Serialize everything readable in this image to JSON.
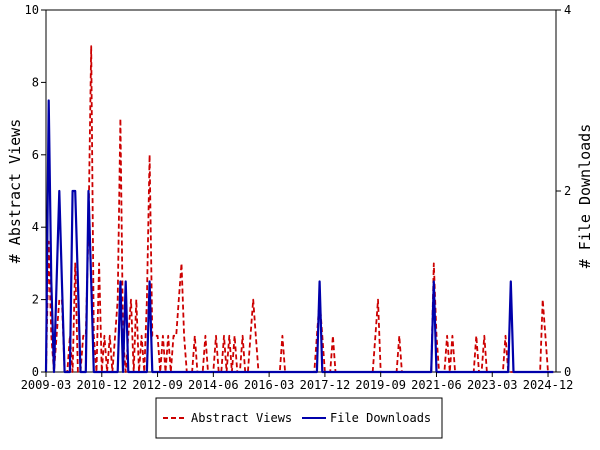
{
  "chart_data": {
    "type": "line",
    "ylabel_left": "# Abstract Views",
    "ylabel_right": "# File Downloads",
    "ylim_left": [
      0,
      10
    ],
    "ylim_right": [
      0,
      4
    ],
    "yticks_left": [
      "0",
      "2",
      "4",
      "6",
      "8",
      "10"
    ],
    "yticks_right": [
      "0",
      "2",
      "4"
    ],
    "x_tick_labels": [
      "2009-03",
      "2010-12",
      "2012-09",
      "2014-06",
      "2016-03",
      "2017-12",
      "2019-09",
      "2021-06",
      "2023-03",
      "2024-12"
    ],
    "x_range": [
      "2009-03",
      "2025-03"
    ],
    "grid": false,
    "legend_position": "bottom",
    "series": [
      {
        "name": "Abstract Views",
        "axis": "left",
        "color": "#cc0000",
        "style": "dashed",
        "points": [
          [
            "2009-03",
            0
          ],
          [
            "2009-04",
            3.6
          ],
          [
            "2009-05",
            1
          ],
          [
            "2009-06",
            0
          ],
          [
            "2009-07",
            1
          ],
          [
            "2009-08",
            2
          ],
          [
            "2009-09",
            2
          ],
          [
            "2009-10",
            0
          ],
          [
            "2009-11",
            0
          ],
          [
            "2009-12",
            1
          ],
          [
            "2010-01",
            0
          ],
          [
            "2010-02",
            3
          ],
          [
            "2010-03",
            0
          ],
          [
            "2010-04",
            0
          ],
          [
            "2010-05",
            1
          ],
          [
            "2010-06",
            1
          ],
          [
            "2010-07",
            4
          ],
          [
            "2010-08",
            9
          ],
          [
            "2010-09",
            1
          ],
          [
            "2010-10",
            0
          ],
          [
            "2010-11",
            3
          ],
          [
            "2010-12",
            0
          ],
          [
            "2011-01",
            1
          ],
          [
            "2011-02",
            0
          ],
          [
            "2011-03",
            1
          ],
          [
            "2011-04",
            0
          ],
          [
            "2011-05",
            1
          ],
          [
            "2011-06",
            2
          ],
          [
            "2011-07",
            7
          ],
          [
            "2011-08",
            1
          ],
          [
            "2011-09",
            0
          ],
          [
            "2011-10",
            1
          ],
          [
            "2011-11",
            2
          ],
          [
            "2011-12",
            0
          ],
          [
            "2012-01",
            2
          ],
          [
            "2012-02",
            0
          ],
          [
            "2012-03",
            1
          ],
          [
            "2012-04",
            0
          ],
          [
            "2012-05",
            2
          ],
          [
            "2012-06",
            6
          ],
          [
            "2012-07",
            1
          ],
          [
            "2012-08",
            1
          ],
          [
            "2012-09",
            1
          ],
          [
            "2012-10",
            0
          ],
          [
            "2012-11",
            1
          ],
          [
            "2012-12",
            0
          ],
          [
            "2013-01",
            1
          ],
          [
            "2013-02",
            0
          ],
          [
            "2013-03",
            1
          ],
          [
            "2013-04",
            1
          ],
          [
            "2013-05",
            2
          ],
          [
            "2013-06",
            3
          ],
          [
            "2013-07",
            1
          ],
          [
            "2013-08",
            0
          ],
          [
            "2013-09",
            0
          ],
          [
            "2013-10",
            0
          ],
          [
            "2013-11",
            1
          ],
          [
            "2013-12",
            0
          ],
          [
            "2014-01",
            0
          ],
          [
            "2014-02",
            0
          ],
          [
            "2014-03",
            1
          ],
          [
            "2014-04",
            0
          ],
          [
            "2014-05",
            0
          ],
          [
            "2014-06",
            0
          ],
          [
            "2014-07",
            1
          ],
          [
            "2014-08",
            0
          ],
          [
            "2014-09",
            0
          ],
          [
            "2014-10",
            1
          ],
          [
            "2014-11",
            0
          ],
          [
            "2014-12",
            1
          ],
          [
            "2015-01",
            0
          ],
          [
            "2015-02",
            1
          ],
          [
            "2015-03",
            0
          ],
          [
            "2015-04",
            0
          ],
          [
            "2015-05",
            1
          ],
          [
            "2015-06",
            0
          ],
          [
            "2015-07",
            0
          ],
          [
            "2015-08",
            1
          ],
          [
            "2015-09",
            2
          ],
          [
            "2015-10",
            1
          ],
          [
            "2015-11",
            0
          ],
          [
            "2015-12",
            0
          ],
          [
            "2016-01",
            0
          ],
          [
            "2016-02",
            0
          ],
          [
            "2016-03",
            0
          ],
          [
            "2016-04",
            0
          ],
          [
            "2016-05",
            0
          ],
          [
            "2016-06",
            0
          ],
          [
            "2016-07",
            0
          ],
          [
            "2016-08",
            1
          ],
          [
            "2016-09",
            0
          ],
          [
            "2016-10",
            0
          ],
          [
            "2016-11",
            0
          ],
          [
            "2016-12",
            0
          ],
          [
            "2017-01",
            0
          ],
          [
            "2017-02",
            0
          ],
          [
            "2017-03",
            0
          ],
          [
            "2017-04",
            0
          ],
          [
            "2017-05",
            0
          ],
          [
            "2017-06",
            0
          ],
          [
            "2017-07",
            0
          ],
          [
            "2017-08",
            0
          ],
          [
            "2017-09",
            1
          ],
          [
            "2017-10",
            2
          ],
          [
            "2017-11",
            1
          ],
          [
            "2017-12",
            0
          ],
          [
            "2018-01",
            0
          ],
          [
            "2018-02",
            0
          ],
          [
            "2018-03",
            1
          ],
          [
            "2018-04",
            0
          ],
          [
            "2018-05",
            0
          ],
          [
            "2018-06",
            0
          ],
          [
            "2018-07",
            0
          ],
          [
            "2018-08",
            0
          ],
          [
            "2018-09",
            0
          ],
          [
            "2018-10",
            0
          ],
          [
            "2018-11",
            0
          ],
          [
            "2018-12",
            0
          ],
          [
            "2019-01",
            0
          ],
          [
            "2019-02",
            0
          ],
          [
            "2019-03",
            0
          ],
          [
            "2019-04",
            0
          ],
          [
            "2019-05",
            0
          ],
          [
            "2019-06",
            0
          ],
          [
            "2019-07",
            1
          ],
          [
            "2019-08",
            2
          ],
          [
            "2019-09",
            0
          ],
          [
            "2019-10",
            0
          ],
          [
            "2019-11",
            0
          ],
          [
            "2019-12",
            0
          ],
          [
            "2020-01",
            0
          ],
          [
            "2020-02",
            0
          ],
          [
            "2020-03",
            0
          ],
          [
            "2020-04",
            1
          ],
          [
            "2020-05",
            0
          ],
          [
            "2020-06",
            0
          ],
          [
            "2020-07",
            0
          ],
          [
            "2020-08",
            0
          ],
          [
            "2020-09",
            0
          ],
          [
            "2020-10",
            0
          ],
          [
            "2020-11",
            0
          ],
          [
            "2020-12",
            0
          ],
          [
            "2021-01",
            0
          ],
          [
            "2021-02",
            0
          ],
          [
            "2021-03",
            0
          ],
          [
            "2021-04",
            0
          ],
          [
            "2021-05",
            3
          ],
          [
            "2021-06",
            1
          ],
          [
            "2021-07",
            0
          ],
          [
            "2021-08",
            0
          ],
          [
            "2021-09",
            0
          ],
          [
            "2021-10",
            1
          ],
          [
            "2021-11",
            0
          ],
          [
            "2021-12",
            1
          ],
          [
            "2022-01",
            0
          ],
          [
            "2022-02",
            0
          ],
          [
            "2022-03",
            0
          ],
          [
            "2022-04",
            0
          ],
          [
            "2022-05",
            0
          ],
          [
            "2022-06",
            0
          ],
          [
            "2022-07",
            0
          ],
          [
            "2022-08",
            0
          ],
          [
            "2022-09",
            1
          ],
          [
            "2022-10",
            0
          ],
          [
            "2022-11",
            0
          ],
          [
            "2022-12",
            1
          ],
          [
            "2023-01",
            0
          ],
          [
            "2023-02",
            0
          ],
          [
            "2023-03",
            0
          ],
          [
            "2023-04",
            0
          ],
          [
            "2023-05",
            0
          ],
          [
            "2023-06",
            0
          ],
          [
            "2023-07",
            0
          ],
          [
            "2023-08",
            1
          ],
          [
            "2023-09",
            0
          ],
          [
            "2023-10",
            0
          ],
          [
            "2023-11",
            0
          ],
          [
            "2023-12",
            0
          ],
          [
            "2024-01",
            0
          ],
          [
            "2024-02",
            0
          ],
          [
            "2024-03",
            0
          ],
          [
            "2024-04",
            0
          ],
          [
            "2024-05",
            0
          ],
          [
            "2024-06",
            0
          ],
          [
            "2024-07",
            0
          ],
          [
            "2024-08",
            0
          ],
          [
            "2024-09",
            0
          ],
          [
            "2024-10",
            2
          ],
          [
            "2024-11",
            1
          ],
          [
            "2024-12",
            0
          ],
          [
            "2025-01",
            0
          ],
          [
            "2025-02",
            0
          ]
        ]
      },
      {
        "name": "File Downloads",
        "axis": "right",
        "color": "#0000aa",
        "style": "solid",
        "points": [
          [
            "2009-03",
            0
          ],
          [
            "2009-04",
            3
          ],
          [
            "2009-05",
            1
          ],
          [
            "2009-06",
            0
          ],
          [
            "2009-07",
            1
          ],
          [
            "2009-08",
            2
          ],
          [
            "2009-09",
            1
          ],
          [
            "2009-10",
            0
          ],
          [
            "2009-11",
            0
          ],
          [
            "2009-12",
            0
          ],
          [
            "2010-01",
            2
          ],
          [
            "2010-02",
            2
          ],
          [
            "2010-03",
            1
          ],
          [
            "2010-04",
            0
          ],
          [
            "2010-05",
            0
          ],
          [
            "2010-06",
            0
          ],
          [
            "2010-07",
            2
          ],
          [
            "2010-08",
            1
          ],
          [
            "2010-09",
            0
          ],
          [
            "2010-10",
            0
          ],
          [
            "2010-11",
            0
          ],
          [
            "2010-12",
            0
          ],
          [
            "2011-01",
            0
          ],
          [
            "2011-02",
            0
          ],
          [
            "2011-03",
            0
          ],
          [
            "2011-04",
            0
          ],
          [
            "2011-05",
            0
          ],
          [
            "2011-06",
            0
          ],
          [
            "2011-07",
            1
          ],
          [
            "2011-08",
            0
          ],
          [
            "2011-09",
            1
          ],
          [
            "2011-10",
            0
          ],
          [
            "2011-11",
            0
          ],
          [
            "2011-12",
            0
          ],
          [
            "2012-01",
            0
          ],
          [
            "2012-02",
            0
          ],
          [
            "2012-03",
            0
          ],
          [
            "2012-04",
            0
          ],
          [
            "2012-05",
            0
          ],
          [
            "2012-06",
            1
          ],
          [
            "2012-07",
            0
          ],
          [
            "2012-08",
            0
          ],
          [
            "2017-09",
            0
          ],
          [
            "2017-10",
            1
          ],
          [
            "2017-11",
            0
          ],
          [
            "2021-04",
            0
          ],
          [
            "2021-05",
            1
          ],
          [
            "2021-06",
            0
          ],
          [
            "2023-09",
            0
          ],
          [
            "2023-10",
            1
          ],
          [
            "2023-11",
            0
          ],
          [
            "2025-02",
            0
          ]
        ]
      }
    ]
  }
}
